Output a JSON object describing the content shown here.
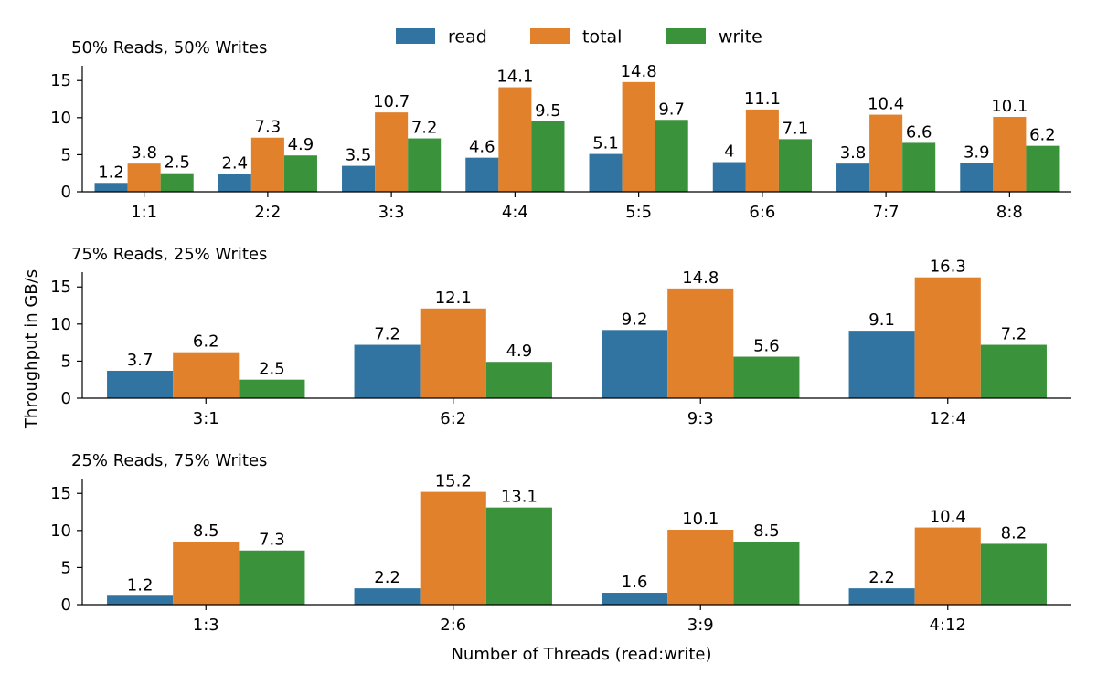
{
  "chart_data": {
    "type": "bar",
    "xlabel": "Number of Threads (read:write)",
    "ylabel": "Throughput in GB/s",
    "legend": {
      "placement": "top-center",
      "entries": [
        "read",
        "total",
        "write"
      ]
    },
    "colors": {
      "read": "#3274a1",
      "total": "#e1812c",
      "write": "#3a923a"
    },
    "grid": false,
    "panels": [
      {
        "title": "50% Reads, 50% Writes",
        "categories": [
          "1:1",
          "2:2",
          "3:3",
          "4:4",
          "5:5",
          "6:6",
          "7:7",
          "8:8"
        ],
        "ylim": [
          0,
          17
        ],
        "yticks": [
          0,
          5,
          10,
          15
        ],
        "series": [
          {
            "name": "read",
            "values": [
              1.2,
              2.4,
              3.5,
              4.6,
              5.1,
              4,
              3.8,
              3.9
            ]
          },
          {
            "name": "total",
            "values": [
              3.8,
              7.3,
              10.7,
              14.1,
              14.8,
              11.1,
              10.4,
              10.1
            ]
          },
          {
            "name": "write",
            "values": [
              2.5,
              4.9,
              7.2,
              9.5,
              9.7,
              7.1,
              6.6,
              6.2
            ]
          }
        ]
      },
      {
        "title": "75% Reads, 25% Writes",
        "categories": [
          "3:1",
          "6:2",
          "9:3",
          "12:4"
        ],
        "ylim": [
          0,
          17
        ],
        "yticks": [
          0,
          5,
          10,
          15
        ],
        "series": [
          {
            "name": "read",
            "values": [
              3.7,
              7.2,
              9.2,
              9.1
            ]
          },
          {
            "name": "total",
            "values": [
              6.2,
              12.1,
              14.8,
              16.3
            ]
          },
          {
            "name": "write",
            "values": [
              2.5,
              4.9,
              5.6,
              7.2
            ]
          }
        ]
      },
      {
        "title": "25% Reads, 75% Writes",
        "categories": [
          "1:3",
          "2:6",
          "3:9",
          "4:12"
        ],
        "ylim": [
          0,
          17
        ],
        "yticks": [
          0,
          5,
          10,
          15
        ],
        "series": [
          {
            "name": "read",
            "values": [
              1.2,
              2.2,
              1.6,
              2.2
            ]
          },
          {
            "name": "total",
            "values": [
              8.5,
              15.2,
              10.1,
              10.4
            ]
          },
          {
            "name": "write",
            "values": [
              7.3,
              13.1,
              8.5,
              8.2
            ]
          }
        ]
      }
    ]
  }
}
